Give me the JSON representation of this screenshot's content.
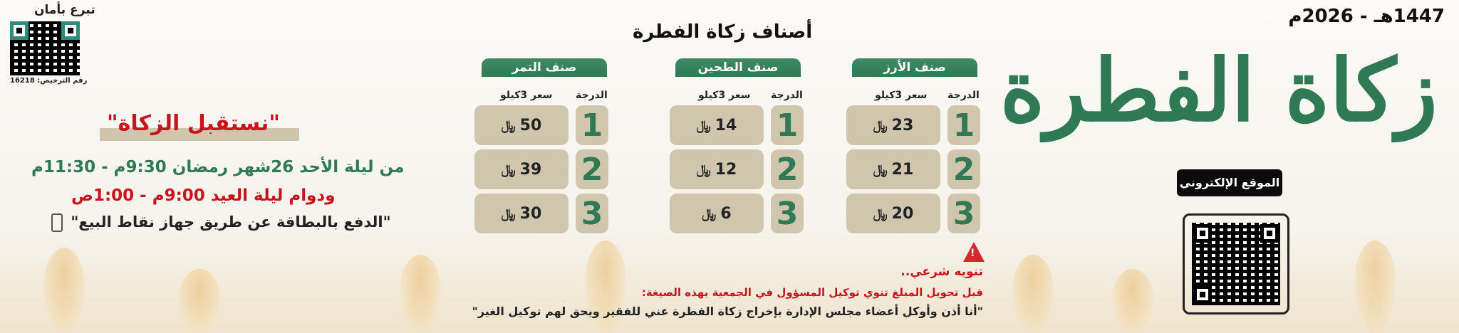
{
  "date": "1447هـ - 2026م",
  "logo_title": "زكاة الفطرة",
  "website_button": "الموقع الإلكتروني",
  "donate_label": "تبرع بأمان",
  "license": "رقم الترخيص: 16218",
  "section_title": "أصناف زكاة الفطرة",
  "currency": "﷼",
  "col_grade": "الدرجة",
  "col_price": "سعر 3كيلو",
  "categories": [
    {
      "name": "صنف الأرز",
      "rows": [
        {
          "grade": "1",
          "price": "23"
        },
        {
          "grade": "2",
          "price": "21"
        },
        {
          "grade": "3",
          "price": "20"
        }
      ]
    },
    {
      "name": "صنف الطحين",
      "rows": [
        {
          "grade": "1",
          "price": "14"
        },
        {
          "grade": "2",
          "price": "12"
        },
        {
          "grade": "3",
          "price": "6"
        }
      ]
    },
    {
      "name": "صنف التمر",
      "rows": [
        {
          "grade": "1",
          "price": "50"
        },
        {
          "grade": "2",
          "price": "39"
        },
        {
          "grade": "3",
          "price": "30"
        }
      ]
    }
  ],
  "receive": {
    "title": "\"نستقبل الزكاة\"",
    "line1": "من ليلة الأحد 26شهر رمضان 9:30م - 11:30م",
    "line2": "ودوام ليلة العيد 9:00م - 1:00ص",
    "line3": "\"الدفع بالبطاقة عن طريق جهاز نقاط البيع\""
  },
  "notice": {
    "title": "تنويه شرعي..",
    "line1": "قبل تحويل المبلغ تنوي توكيل المسؤول في الجمعية بهذه الصيغة:",
    "line2": "\"أنا أذن وأوكل أعضاء مجلس الإدارة بإخراج زكاة الفطرة عني للفقير ويحق لهم توكيل الغير\""
  },
  "colors": {
    "green": "#2f7a55",
    "red": "#c8141c",
    "beige": "#cfc6ad"
  }
}
